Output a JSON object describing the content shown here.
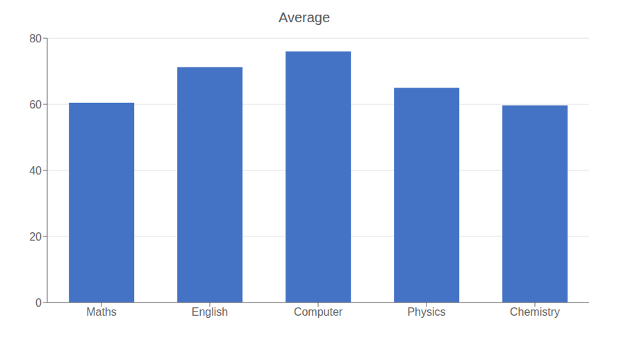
{
  "chart_data": {
    "type": "bar",
    "title": "Average",
    "categories": [
      "Maths",
      "English",
      "Computer",
      "Physics",
      "Chemistry"
    ],
    "values": [
      60.5,
      71.25,
      76,
      65,
      59.7
    ],
    "color": "#4472C4",
    "ylim": [
      0,
      80
    ],
    "yticks": [
      0,
      20,
      40,
      60,
      80
    ],
    "grid": true
  }
}
